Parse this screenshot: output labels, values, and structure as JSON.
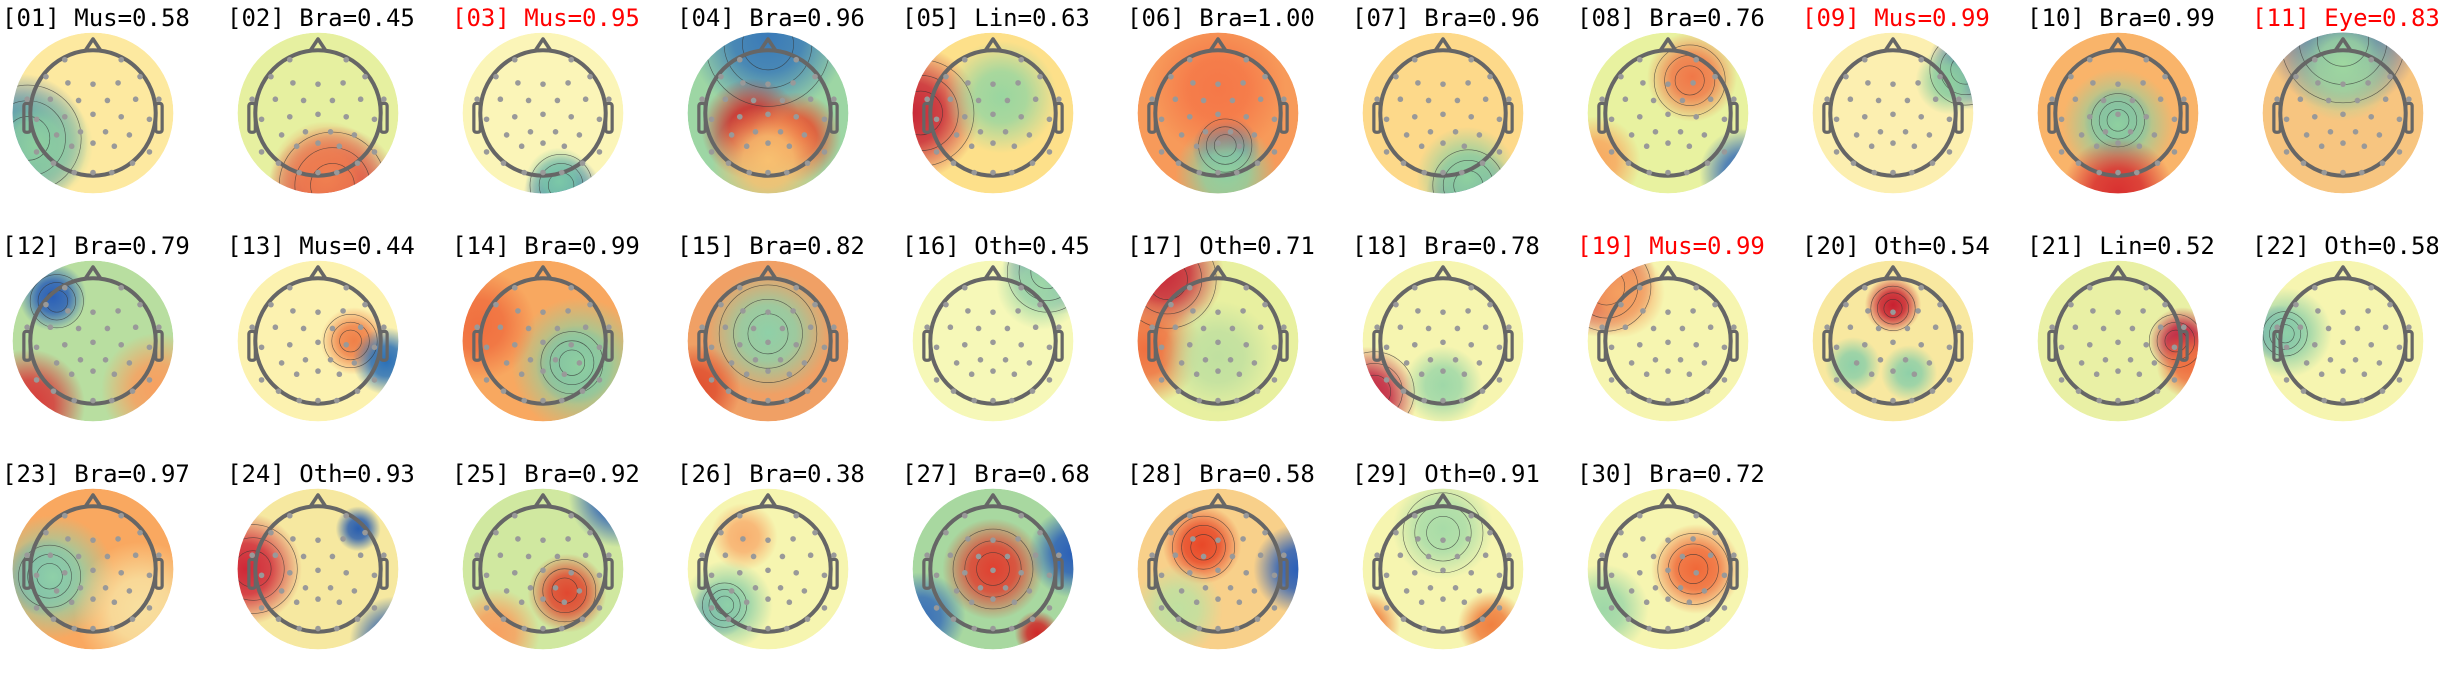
{
  "chart_data": {
    "type": "topomap-grid",
    "components": [
      {
        "label": "[01] Mus=0.58",
        "rejected": false
      },
      {
        "label": "[02] Bra=0.45",
        "rejected": false
      },
      {
        "label": "[03] Mus=0.95",
        "rejected": true
      },
      {
        "label": "[04] Bra=0.96",
        "rejected": false
      },
      {
        "label": "[05] Lin=0.63",
        "rejected": false
      },
      {
        "label": "[06] Bra=1.00",
        "rejected": false
      },
      {
        "label": "[07] Bra=0.96",
        "rejected": false
      },
      {
        "label": "[08] Bra=0.76",
        "rejected": false
      },
      {
        "label": "[09] Mus=0.99",
        "rejected": true
      },
      {
        "label": "[10] Bra=0.99",
        "rejected": false
      },
      {
        "label": "[11] Eye=0.83",
        "rejected": true
      },
      {
        "label": "[12] Bra=0.79",
        "rejected": false
      },
      {
        "label": "[13] Mus=0.44",
        "rejected": false
      },
      {
        "label": "[14] Bra=0.99",
        "rejected": false
      },
      {
        "label": "[15] Bra=0.82",
        "rejected": false
      },
      {
        "label": "[16] Oth=0.45",
        "rejected": false
      },
      {
        "label": "[17] Oth=0.71",
        "rejected": false
      },
      {
        "label": "[18] Bra=0.78",
        "rejected": false
      },
      {
        "label": "[19] Mus=0.99",
        "rejected": true
      },
      {
        "label": "[20] Oth=0.54",
        "rejected": false
      },
      {
        "label": "[21] Lin=0.52",
        "rejected": false
      },
      {
        "label": "[22] Oth=0.58",
        "rejected": false
      },
      {
        "label": "[23] Bra=0.97",
        "rejected": false
      },
      {
        "label": "[24] Oth=0.93",
        "rejected": false
      },
      {
        "label": "[25] Bra=0.92",
        "rejected": false
      },
      {
        "label": "[26] Bra=0.38",
        "rejected": false
      },
      {
        "label": "[27] Bra=0.68",
        "rejected": false
      },
      {
        "label": "[28] Bra=0.58",
        "rejected": false
      },
      {
        "label": "[29] Oth=0.91",
        "rejected": false
      },
      {
        "label": "[30] Bra=0.72",
        "rejected": false
      }
    ],
    "colormap": "RdYlBu (diverging: red-yellow-green-blue)",
    "colors": {
      "rejected_title": "#ff0000",
      "title": "#000000",
      "head_outline": "#666666",
      "sensor": "#999999"
    }
  }
}
